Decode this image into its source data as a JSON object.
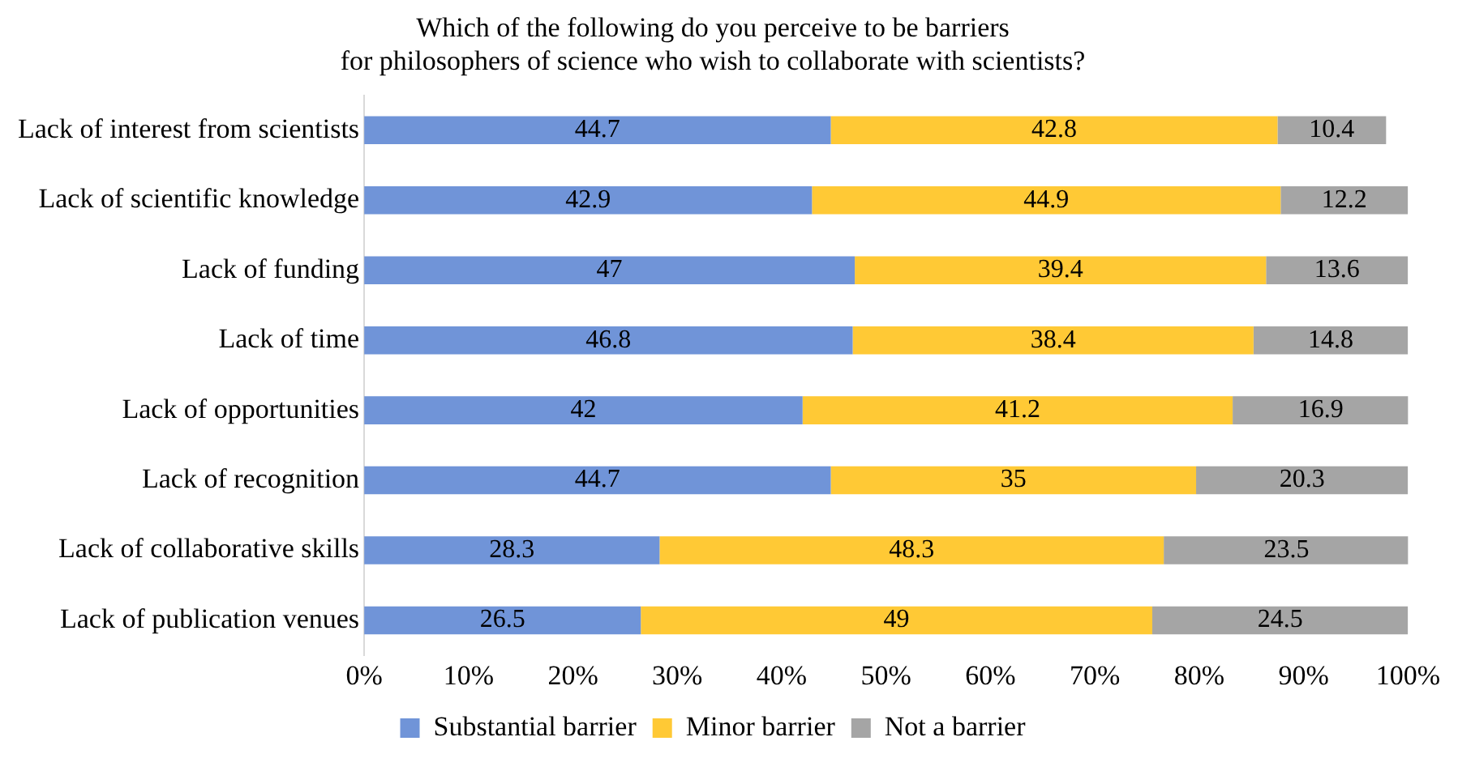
{
  "chart_data": {
    "type": "bar",
    "orientation": "horizontal",
    "stacked": true,
    "title": "Which of the following do you perceive to be barriers\nfor philosophers of science who wish to collaborate with scientists?",
    "categories": [
      "Lack of interest from scientists",
      "Lack of scientific knowledge",
      "Lack of funding",
      "Lack of time",
      "Lack of opportunities",
      "Lack of recognition",
      "Lack of collaborative skills",
      "Lack of publication venues"
    ],
    "series": [
      {
        "name": "Substantial barrier",
        "color": "#7094d8",
        "values": [
          44.7,
          42.9,
          47,
          46.8,
          42,
          44.7,
          28.3,
          26.5
        ]
      },
      {
        "name": "Minor barrier",
        "color": "#ffc935",
        "values": [
          42.8,
          44.9,
          39.4,
          38.4,
          41.2,
          35,
          48.3,
          49
        ]
      },
      {
        "name": "Not a barrier",
        "color": "#a5a5a5",
        "values": [
          10.4,
          12.2,
          13.6,
          14.8,
          16.9,
          20.3,
          23.5,
          24.5
        ]
      }
    ],
    "xlim": [
      0,
      100
    ],
    "xticks": [
      {
        "value": 0,
        "label": "0%"
      },
      {
        "value": 10,
        "label": "10%"
      },
      {
        "value": 20,
        "label": "20%"
      },
      {
        "value": 30,
        "label": "30%"
      },
      {
        "value": 40,
        "label": "40%"
      },
      {
        "value": 50,
        "label": "50%"
      },
      {
        "value": 60,
        "label": "60%"
      },
      {
        "value": 70,
        "label": "70%"
      },
      {
        "value": 80,
        "label": "80%"
      },
      {
        "value": 90,
        "label": "90%"
      },
      {
        "value": 100,
        "label": "100%"
      }
    ],
    "data_labels": true,
    "grid": false,
    "legend": "bottom"
  }
}
